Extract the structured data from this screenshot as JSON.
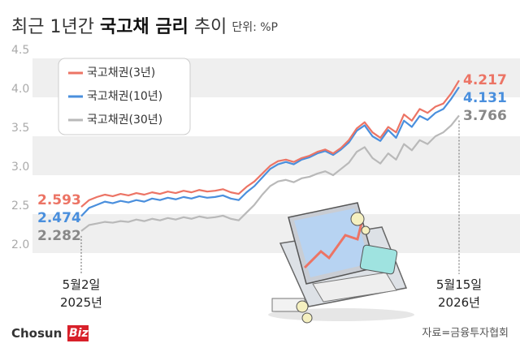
{
  "chart_data": {
    "type": "line",
    "title_parts": [
      "최근 1년간 ",
      "국고채 금리",
      " 추이"
    ],
    "unit": "단위: %P",
    "source": "자료=금융투자협회",
    "logo": [
      "Chosun",
      "Biz"
    ],
    "categories": [
      "5월2일\n2025년",
      null,
      null,
      null,
      null,
      null,
      null,
      null,
      null,
      null,
      null,
      null,
      null,
      null,
      null,
      null,
      null,
      null,
      null,
      null,
      null,
      null,
      null,
      null,
      null,
      null,
      null,
      null,
      null,
      null,
      null,
      null,
      null,
      null,
      null,
      null,
      null,
      null,
      null,
      null,
      null,
      null,
      null,
      null,
      null,
      null,
      null,
      null,
      "5월15일\n2026년"
    ],
    "ylim": [
      2.0,
      4.5
    ],
    "yticks": [
      {
        "value": 2,
        "label": "2.0"
      },
      2.5,
      {
        "value": 3,
        "label": "3.0"
      },
      3.5,
      {
        "value": 4,
        "label": "4.0"
      },
      4.5
    ],
    "banded_grid": true,
    "legend": "upper left",
    "series": [
      {
        "name": "국고채권(3년)",
        "color": "#ec7465",
        "values": [
          2.593,
          2.68,
          2.72,
          2.75,
          2.73,
          2.76,
          2.74,
          2.77,
          2.75,
          2.78,
          2.76,
          2.79,
          2.77,
          2.8,
          2.78,
          2.81,
          2.79,
          2.8,
          2.82,
          2.78,
          2.76,
          2.85,
          2.92,
          3.02,
          3.12,
          3.18,
          3.2,
          3.17,
          3.22,
          3.25,
          3.3,
          3.33,
          3.28,
          3.35,
          3.45,
          3.6,
          3.68,
          3.55,
          3.48,
          3.62,
          3.55,
          3.78,
          3.7,
          3.85,
          3.8,
          3.88,
          3.92,
          4.05,
          4.217
        ]
      },
      {
        "name": "국고채권(10년)",
        "color": "#4a8fdd",
        "values": [
          2.474,
          2.58,
          2.62,
          2.66,
          2.64,
          2.67,
          2.65,
          2.68,
          2.66,
          2.7,
          2.68,
          2.71,
          2.69,
          2.72,
          2.7,
          2.73,
          2.71,
          2.72,
          2.74,
          2.7,
          2.68,
          2.78,
          2.86,
          2.97,
          3.08,
          3.14,
          3.17,
          3.14,
          3.2,
          3.23,
          3.28,
          3.31,
          3.26,
          3.33,
          3.42,
          3.57,
          3.64,
          3.5,
          3.44,
          3.58,
          3.48,
          3.7,
          3.62,
          3.76,
          3.71,
          3.8,
          3.85,
          3.98,
          4.131
        ]
      },
      {
        "name": "국고채권(30년)",
        "color": "#b9b9b9",
        "values": [
          2.282,
          2.36,
          2.38,
          2.4,
          2.39,
          2.41,
          2.4,
          2.43,
          2.41,
          2.44,
          2.42,
          2.45,
          2.43,
          2.46,
          2.44,
          2.47,
          2.45,
          2.46,
          2.48,
          2.44,
          2.42,
          2.52,
          2.62,
          2.75,
          2.86,
          2.92,
          2.94,
          2.91,
          2.96,
          2.98,
          3.02,
          3.05,
          3.0,
          3.08,
          3.16,
          3.3,
          3.36,
          3.22,
          3.15,
          3.28,
          3.2,
          3.4,
          3.32,
          3.45,
          3.4,
          3.5,
          3.55,
          3.64,
          3.766
        ]
      }
    ]
  }
}
